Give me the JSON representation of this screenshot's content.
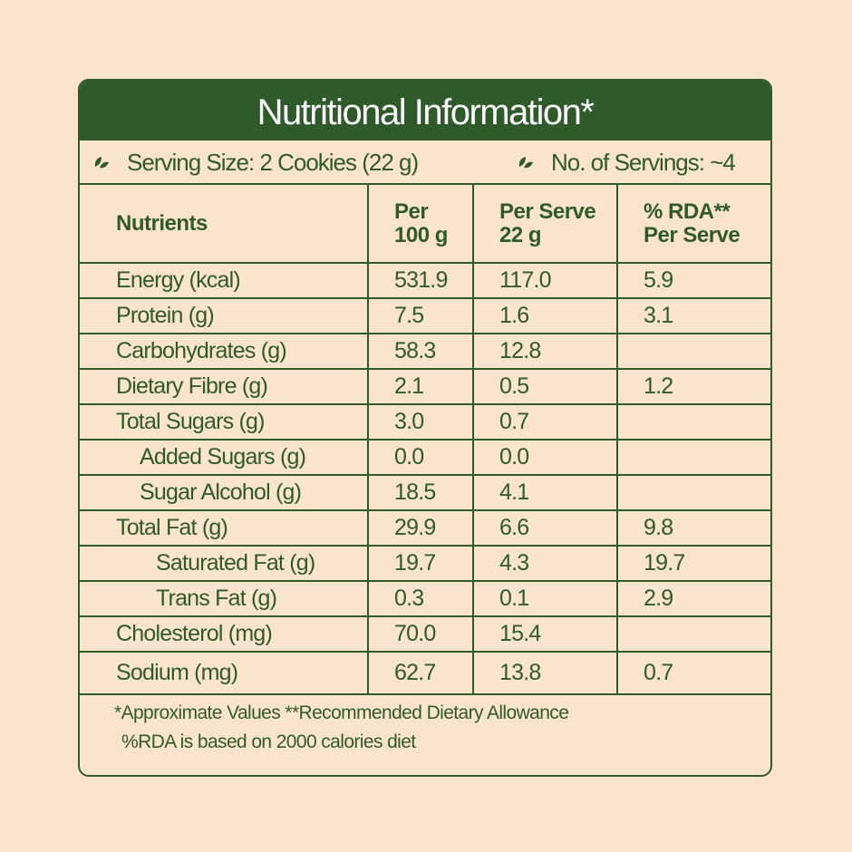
{
  "title": "Nutritional Information*",
  "serving_size": "Serving Size: 2 Cookies (22 g)",
  "servings": "No. of Servings: ~4",
  "headers": [
    "Nutrients",
    "Per\n100 g",
    "Per Serve\n22 g",
    "% RDA**\nPer Serve"
  ],
  "rows": [
    {
      "name": "Energy (kcal)",
      "per100": "531.9",
      "serve": "117.0",
      "rda": "5.9",
      "indent": 0
    },
    {
      "name": "Protein (g)",
      "per100": "7.5",
      "serve": "1.6",
      "rda": "3.1",
      "indent": 0
    },
    {
      "name": "Carbohydrates (g)",
      "per100": "58.3",
      "serve": "12.8",
      "rda": "",
      "indent": 0
    },
    {
      "name": "Dietary Fibre (g)",
      "per100": "2.1",
      "serve": "0.5",
      "rda": "1.2",
      "indent": 0
    },
    {
      "name": "Total Sugars (g)",
      "per100": "3.0",
      "serve": "0.7",
      "rda": "",
      "indent": 0
    },
    {
      "name": "Added Sugars (g)",
      "per100": "0.0",
      "serve": "0.0",
      "rda": "",
      "indent": 1
    },
    {
      "name": "Sugar Alcohol (g)",
      "per100": "18.5",
      "serve": "4.1",
      "rda": "",
      "indent": 1
    },
    {
      "name": "Total Fat (g)",
      "per100": "29.9",
      "serve": "6.6",
      "rda": "9.8",
      "indent": 0
    },
    {
      "name": "Saturated Fat (g)",
      "per100": "19.7",
      "serve": "4.3",
      "rda": "19.7",
      "indent": 2
    },
    {
      "name": "Trans Fat (g)",
      "per100": "0.3",
      "serve": "0.1",
      "rda": "2.9",
      "indent": 2
    },
    {
      "name": "Cholesterol (mg)",
      "per100": "70.0",
      "serve": "15.4",
      "rda": "",
      "indent": 0
    },
    {
      "name": "Sodium (mg)",
      "per100": "62.7",
      "serve": "13.8",
      "rda": "0.7",
      "indent": 0
    }
  ],
  "footnotes": [
    "*Approximate Values  **Recommended Dietary Allowance",
    "%RDA is based on 2000 calories diet"
  ],
  "colors": {
    "background": "#fbe4cd",
    "green": "#2f5a2a"
  },
  "icons": {
    "bullet": "leaf-icon"
  }
}
